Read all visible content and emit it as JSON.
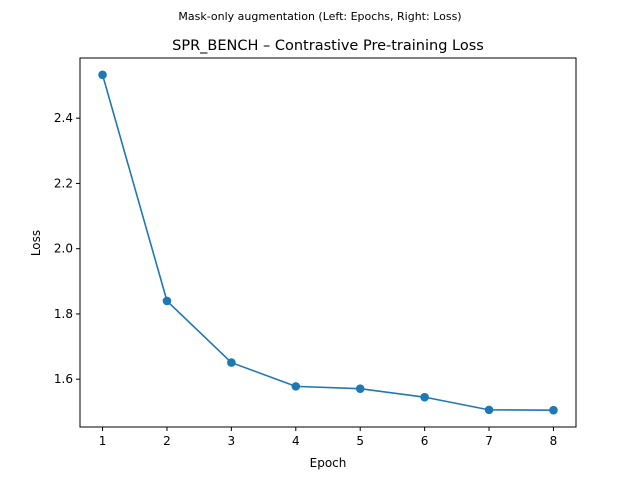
{
  "figure": {
    "suptitle": "Mask-only augmentation (Left: Epochs, Right: Loss)"
  },
  "chart_data": {
    "type": "line",
    "title": "SPR_BENCH – Contrastive Pre-training Loss",
    "xlabel": "Epoch",
    "ylabel": "Loss",
    "x": [
      1,
      2,
      3,
      4,
      5,
      6,
      7,
      8
    ],
    "series": [
      {
        "values": [
          2.533,
          1.84,
          1.651,
          1.578,
          1.571,
          1.545,
          1.506,
          1.505
        ],
        "color": "#1f77b4",
        "marker": "circle"
      }
    ],
    "xticks": [
      1,
      2,
      3,
      4,
      5,
      6,
      7,
      8
    ],
    "yticks": [
      1.6,
      1.8,
      2.0,
      2.2,
      2.4
    ],
    "xlim": [
      0.65,
      8.35
    ],
    "ylim": [
      1.4535,
      2.5845
    ],
    "grid": false,
    "legend": "none"
  }
}
